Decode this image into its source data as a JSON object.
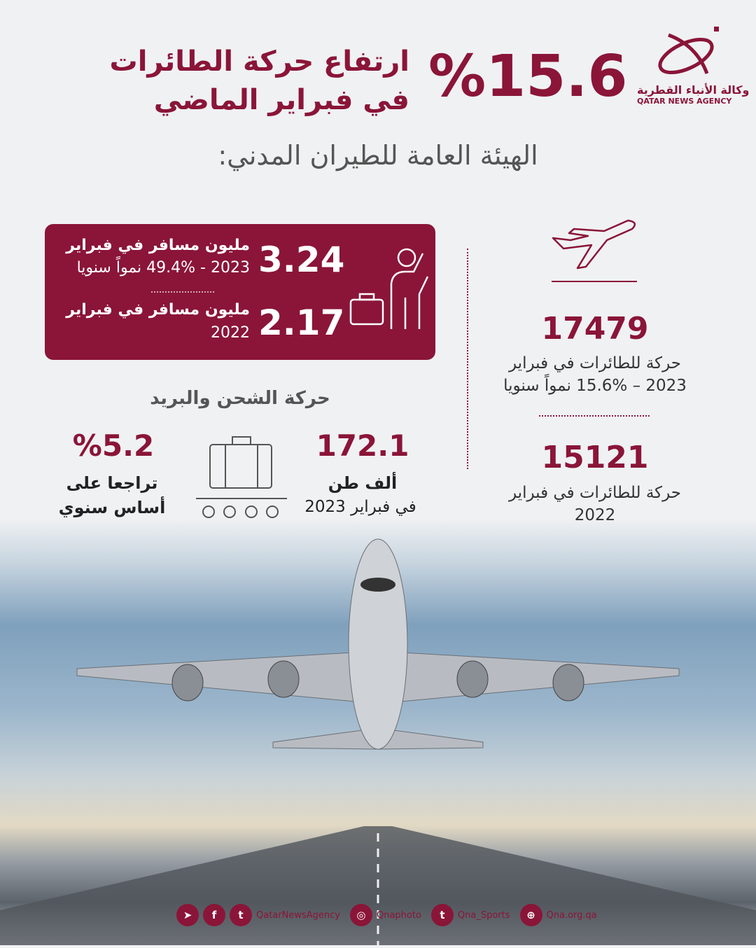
{
  "brand": {
    "name_ar": "وكالة الأنباء القطرية",
    "name_en": "QATAR NEWS AGENCY",
    "color": "#8a1538"
  },
  "headline": {
    "percent": "%15.6",
    "line1": "ارتفاع حركة الطائرات",
    "line2": "في فبراير الماضي"
  },
  "source": "الهيئة العامة للطيران المدني:",
  "passengers": {
    "current_value": "3.24",
    "current_line1": "مليون مسافر في فبراير",
    "current_line2": "2023 - 49.4% نمواً سنويا",
    "previous_value": "2.17",
    "previous_line1": "مليون مسافر في فبراير",
    "previous_line2": "2022"
  },
  "flights": {
    "current_value": "17479",
    "current_line1": "حركة للطائرات في فبراير",
    "current_line2": "2023 – 15.6% نمواً سنويا",
    "previous_value": "15121",
    "previous_line1": "حركة للطائرات في فبراير",
    "previous_line2": "2022"
  },
  "cargo": {
    "title": "حركة الشحن والبريد",
    "volume_value": "172.1",
    "volume_line1": "ألف طن",
    "volume_line2": "في فبراير 2023",
    "change_value": "%5.2",
    "change_line1": "تراجعا على",
    "change_line2": "أساس سنوي"
  },
  "social": [
    {
      "icons": [
        "telegram-icon",
        "facebook-icon",
        "twitter-icon"
      ],
      "handle": "QatarNewsAgency"
    },
    {
      "icons": [
        "instagram-icon"
      ],
      "handle": "Qnaphoto"
    },
    {
      "icons": [
        "twitter-icon"
      ],
      "handle": "Qna_Sports"
    },
    {
      "icons": [
        "globe-icon"
      ],
      "handle": "Qna.org.qa"
    }
  ]
}
